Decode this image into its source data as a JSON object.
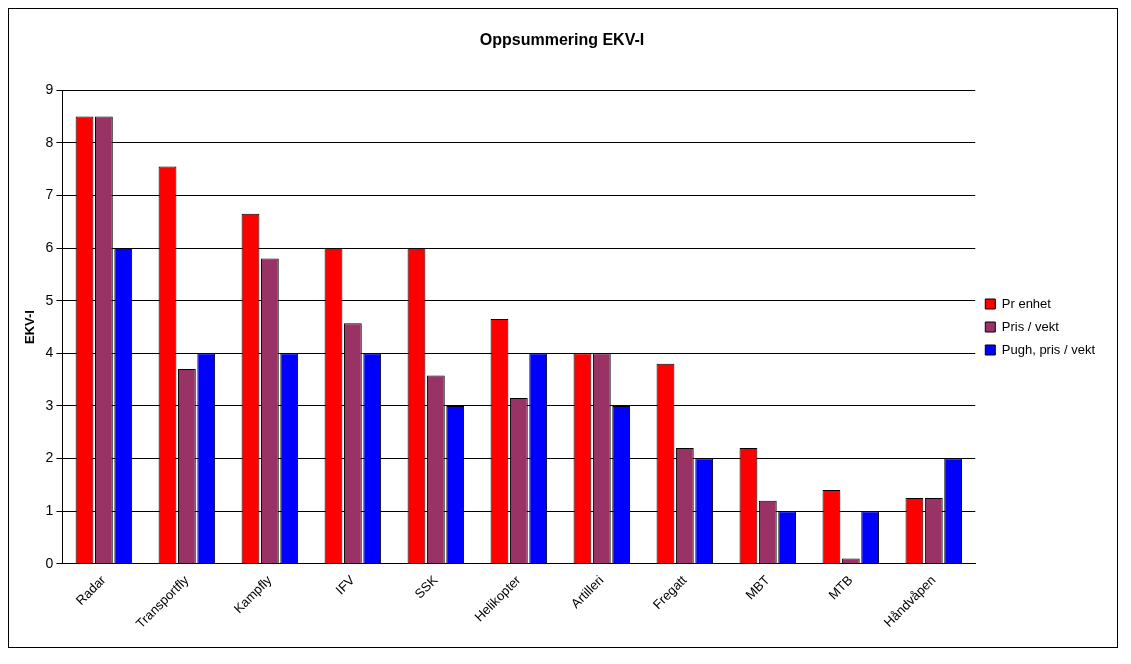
{
  "chart_data": {
    "type": "bar",
    "title": "Oppsummering EKV-I",
    "ylabel": "EKV-I",
    "categories": [
      "Radar",
      "Transportfly",
      "Kampfly",
      "IFV",
      "SSK",
      "Helikopter",
      "Artilleri",
      "Fregatt",
      "MBT",
      "MTB",
      "Håndvåpen"
    ],
    "series": [
      {
        "name": "Pr enhet",
        "color": "#ff0000",
        "values": [
          8.5,
          7.55,
          6.65,
          6,
          6,
          4.65,
          4,
          3.8,
          2.2,
          1.4,
          1.25
        ]
      },
      {
        "name": "Pris / vekt",
        "color": "#993366",
        "values": [
          8.5,
          3.7,
          5.8,
          4.57,
          3.58,
          3.15,
          4,
          2.2,
          1.2,
          0.1,
          1.25
        ]
      },
      {
        "name": "Pugh, pris / vekt",
        "color": "#0000ff",
        "values": [
          6,
          4,
          4,
          4,
          3,
          4,
          3,
          2,
          1,
          1,
          2
        ]
      }
    ],
    "ylim": [
      0,
      9
    ],
    "yticks": [
      0,
      1,
      2,
      3,
      4,
      5,
      6,
      7,
      8,
      9
    ],
    "grid": "y",
    "legend": "right"
  }
}
